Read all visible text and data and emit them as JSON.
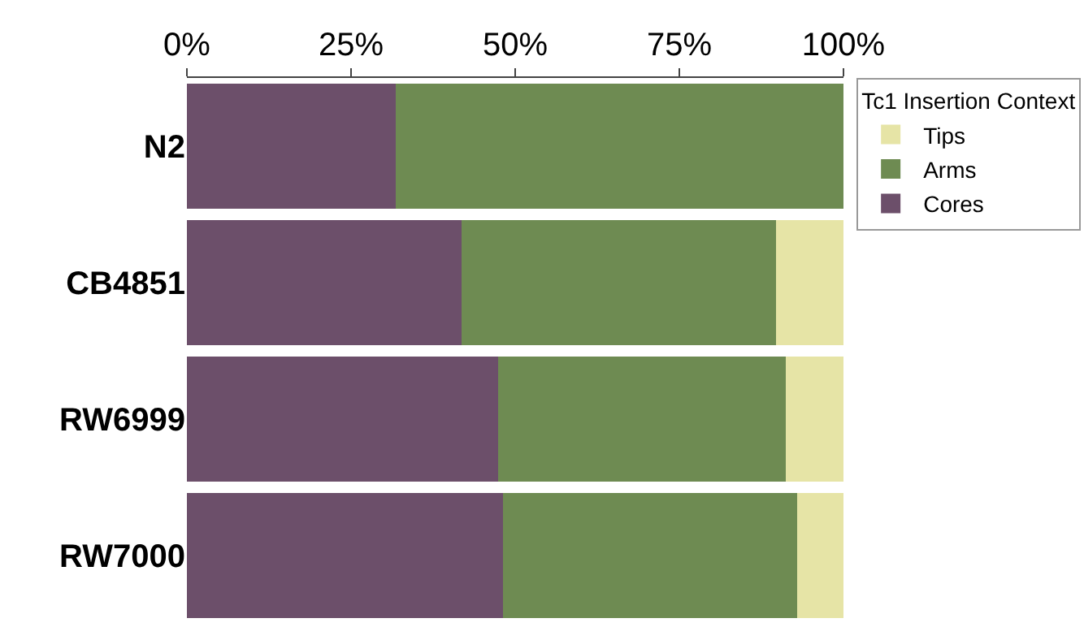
{
  "chart_data": {
    "type": "bar",
    "orientation": "horizontal",
    "stacked": true,
    "legend_title": "Tc1 Insertion Context",
    "categories": [
      "N2",
      "CB4851",
      "RW6999",
      "RW7000"
    ],
    "series": [
      {
        "name": "Cores",
        "color": "#6c4f6a",
        "values": [
          31.8,
          41.8,
          47.4,
          48.2
        ]
      },
      {
        "name": "Arms",
        "color": "#6e8b52",
        "values": [
          68.2,
          47.9,
          43.8,
          44.7
        ]
      },
      {
        "name": "Tips",
        "color": "#e6e4a6",
        "values": [
          0,
          10.3,
          8.8,
          7.1
        ]
      }
    ],
    "xlim": [
      0,
      100
    ],
    "xticks": [
      {
        "value": 0,
        "label": "0%"
      },
      {
        "value": 25,
        "label": "25%"
      },
      {
        "value": 50,
        "label": "50%"
      },
      {
        "value": 75,
        "label": "75%"
      },
      {
        "value": 100,
        "label": "100%"
      }
    ],
    "grid": false,
    "legend": "top right"
  }
}
